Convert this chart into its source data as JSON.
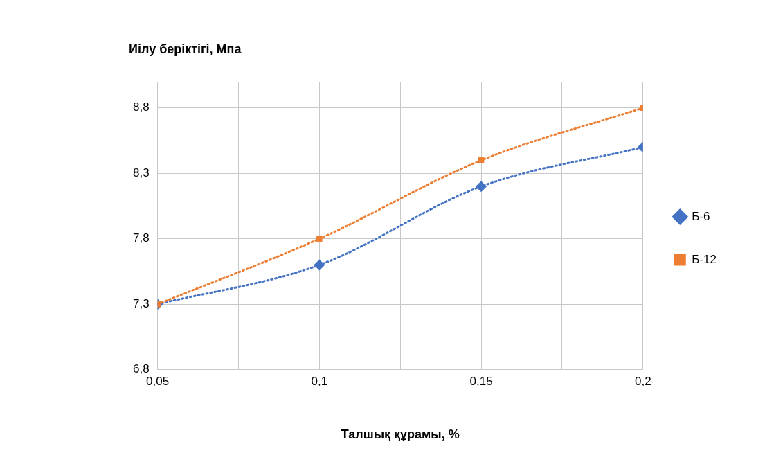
{
  "chart_data": {
    "type": "line",
    "xlabel": "Талшық құрамы, %",
    "ylabel": "Иілу беріктігі, Мпа",
    "x": [
      0.05,
      0.1,
      0.15,
      0.2
    ],
    "series": [
      {
        "name": "Б-6",
        "color": "#4472c4",
        "marker": "diamond",
        "values": [
          7.3,
          7.6,
          8.2,
          8.5
        ]
      },
      {
        "name": "Б-12",
        "color": "#ed7d31",
        "marker": "square",
        "values": [
          7.3,
          7.8,
          8.4,
          8.8
        ]
      }
    ],
    "xlim": [
      0.05,
      0.2
    ],
    "xticks": [
      {
        "value": 0.05,
        "label": "0,05"
      },
      {
        "value": 0.075,
        "label": null
      },
      {
        "value": 0.1,
        "label": "0,1"
      },
      {
        "value": 0.125,
        "label": null
      },
      {
        "value": 0.15,
        "label": "0,15"
      },
      {
        "value": 0.175,
        "label": null
      },
      {
        "value": 0.2,
        "label": "0,2"
      }
    ],
    "ylim": [
      6.8,
      9.0
    ],
    "yticks": [
      {
        "value": 6.8,
        "label": "6,8"
      },
      {
        "value": 7.3,
        "label": "7,3"
      },
      {
        "value": 7.8,
        "label": "7,8"
      },
      {
        "value": 8.3,
        "label": "8,3"
      },
      {
        "value": 8.8,
        "label": "8,8"
      }
    ],
    "grid": true,
    "legend": "right",
    "line_style": "dotted"
  }
}
